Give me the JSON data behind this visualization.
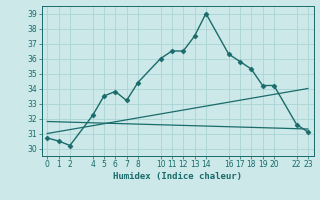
{
  "xlabel": "Humidex (Indice chaleur)",
  "bg_color": "#cce8e8",
  "grid_color": "#aad4d4",
  "line_color": "#1a6b6b",
  "ylim": [
    29.5,
    39.5
  ],
  "xlim": [
    -0.5,
    23.5
  ],
  "yticks": [
    30,
    31,
    32,
    33,
    34,
    35,
    36,
    37,
    38,
    39
  ],
  "xticks": [
    0,
    1,
    2,
    4,
    5,
    6,
    7,
    8,
    10,
    11,
    12,
    13,
    14,
    16,
    17,
    18,
    19,
    20,
    22,
    23
  ],
  "xtick_labels": [
    "0",
    "1",
    "2",
    "4",
    "5",
    "6",
    "7",
    "8",
    "10",
    "11",
    "12",
    "13",
    "14",
    "16",
    "17",
    "18",
    "19",
    "20",
    "22",
    "23"
  ],
  "main_x": [
    0,
    1,
    2,
    4,
    5,
    6,
    7,
    8,
    10,
    11,
    12,
    13,
    14,
    16,
    17,
    18,
    19,
    20,
    22,
    23
  ],
  "main_y": [
    30.7,
    30.5,
    30.2,
    32.2,
    33.5,
    33.8,
    33.2,
    34.4,
    36.0,
    36.5,
    36.5,
    37.5,
    39.0,
    36.3,
    35.8,
    35.3,
    34.2,
    34.2,
    31.6,
    31.1
  ],
  "line2_x": [
    0,
    23
  ],
  "line2_y": [
    31.0,
    34.0
  ],
  "line3_x": [
    0,
    23
  ],
  "line3_y": [
    31.8,
    31.3
  ]
}
